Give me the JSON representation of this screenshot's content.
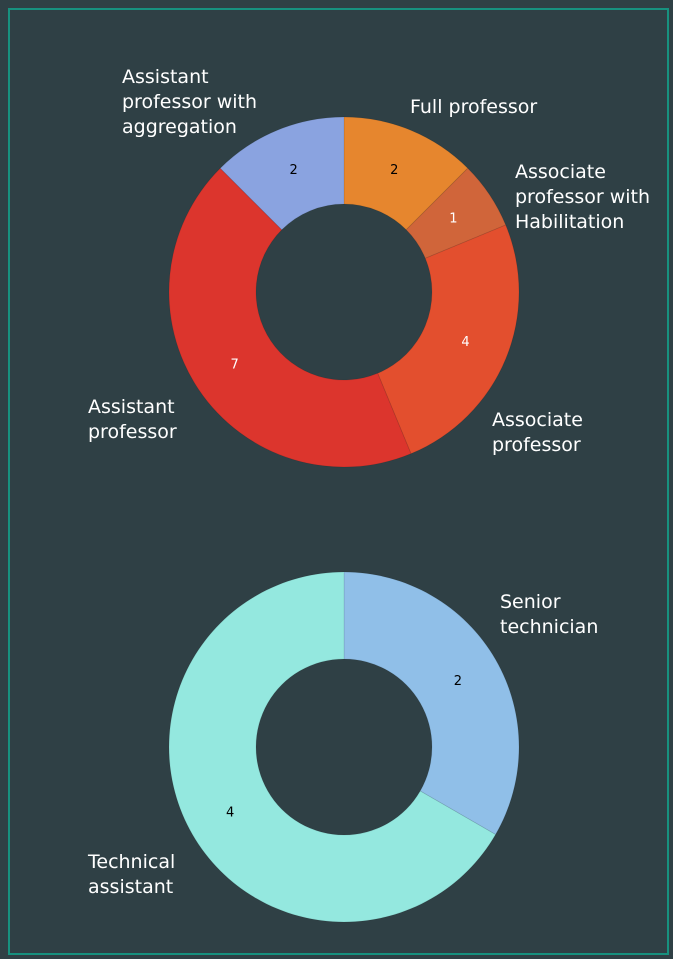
{
  "chart_data": [
    {
      "type": "donut",
      "categories": [
        "Full professor",
        "Associate professor with Habilitation",
        "Associate professor",
        "Assistant professor",
        "Assistant professor with aggregation"
      ],
      "values": [
        2,
        1,
        4,
        7,
        2
      ],
      "colors": [
        "#e6862e",
        "#d0653a",
        "#e34f2e",
        "#dc352d",
        "#8aa3e0"
      ]
    },
    {
      "type": "donut",
      "categories": [
        "Senior technician",
        "Technical assistant"
      ],
      "values": [
        2,
        4
      ],
      "colors": [
        "#90bfe8",
        "#94e8df"
      ]
    }
  ]
}
